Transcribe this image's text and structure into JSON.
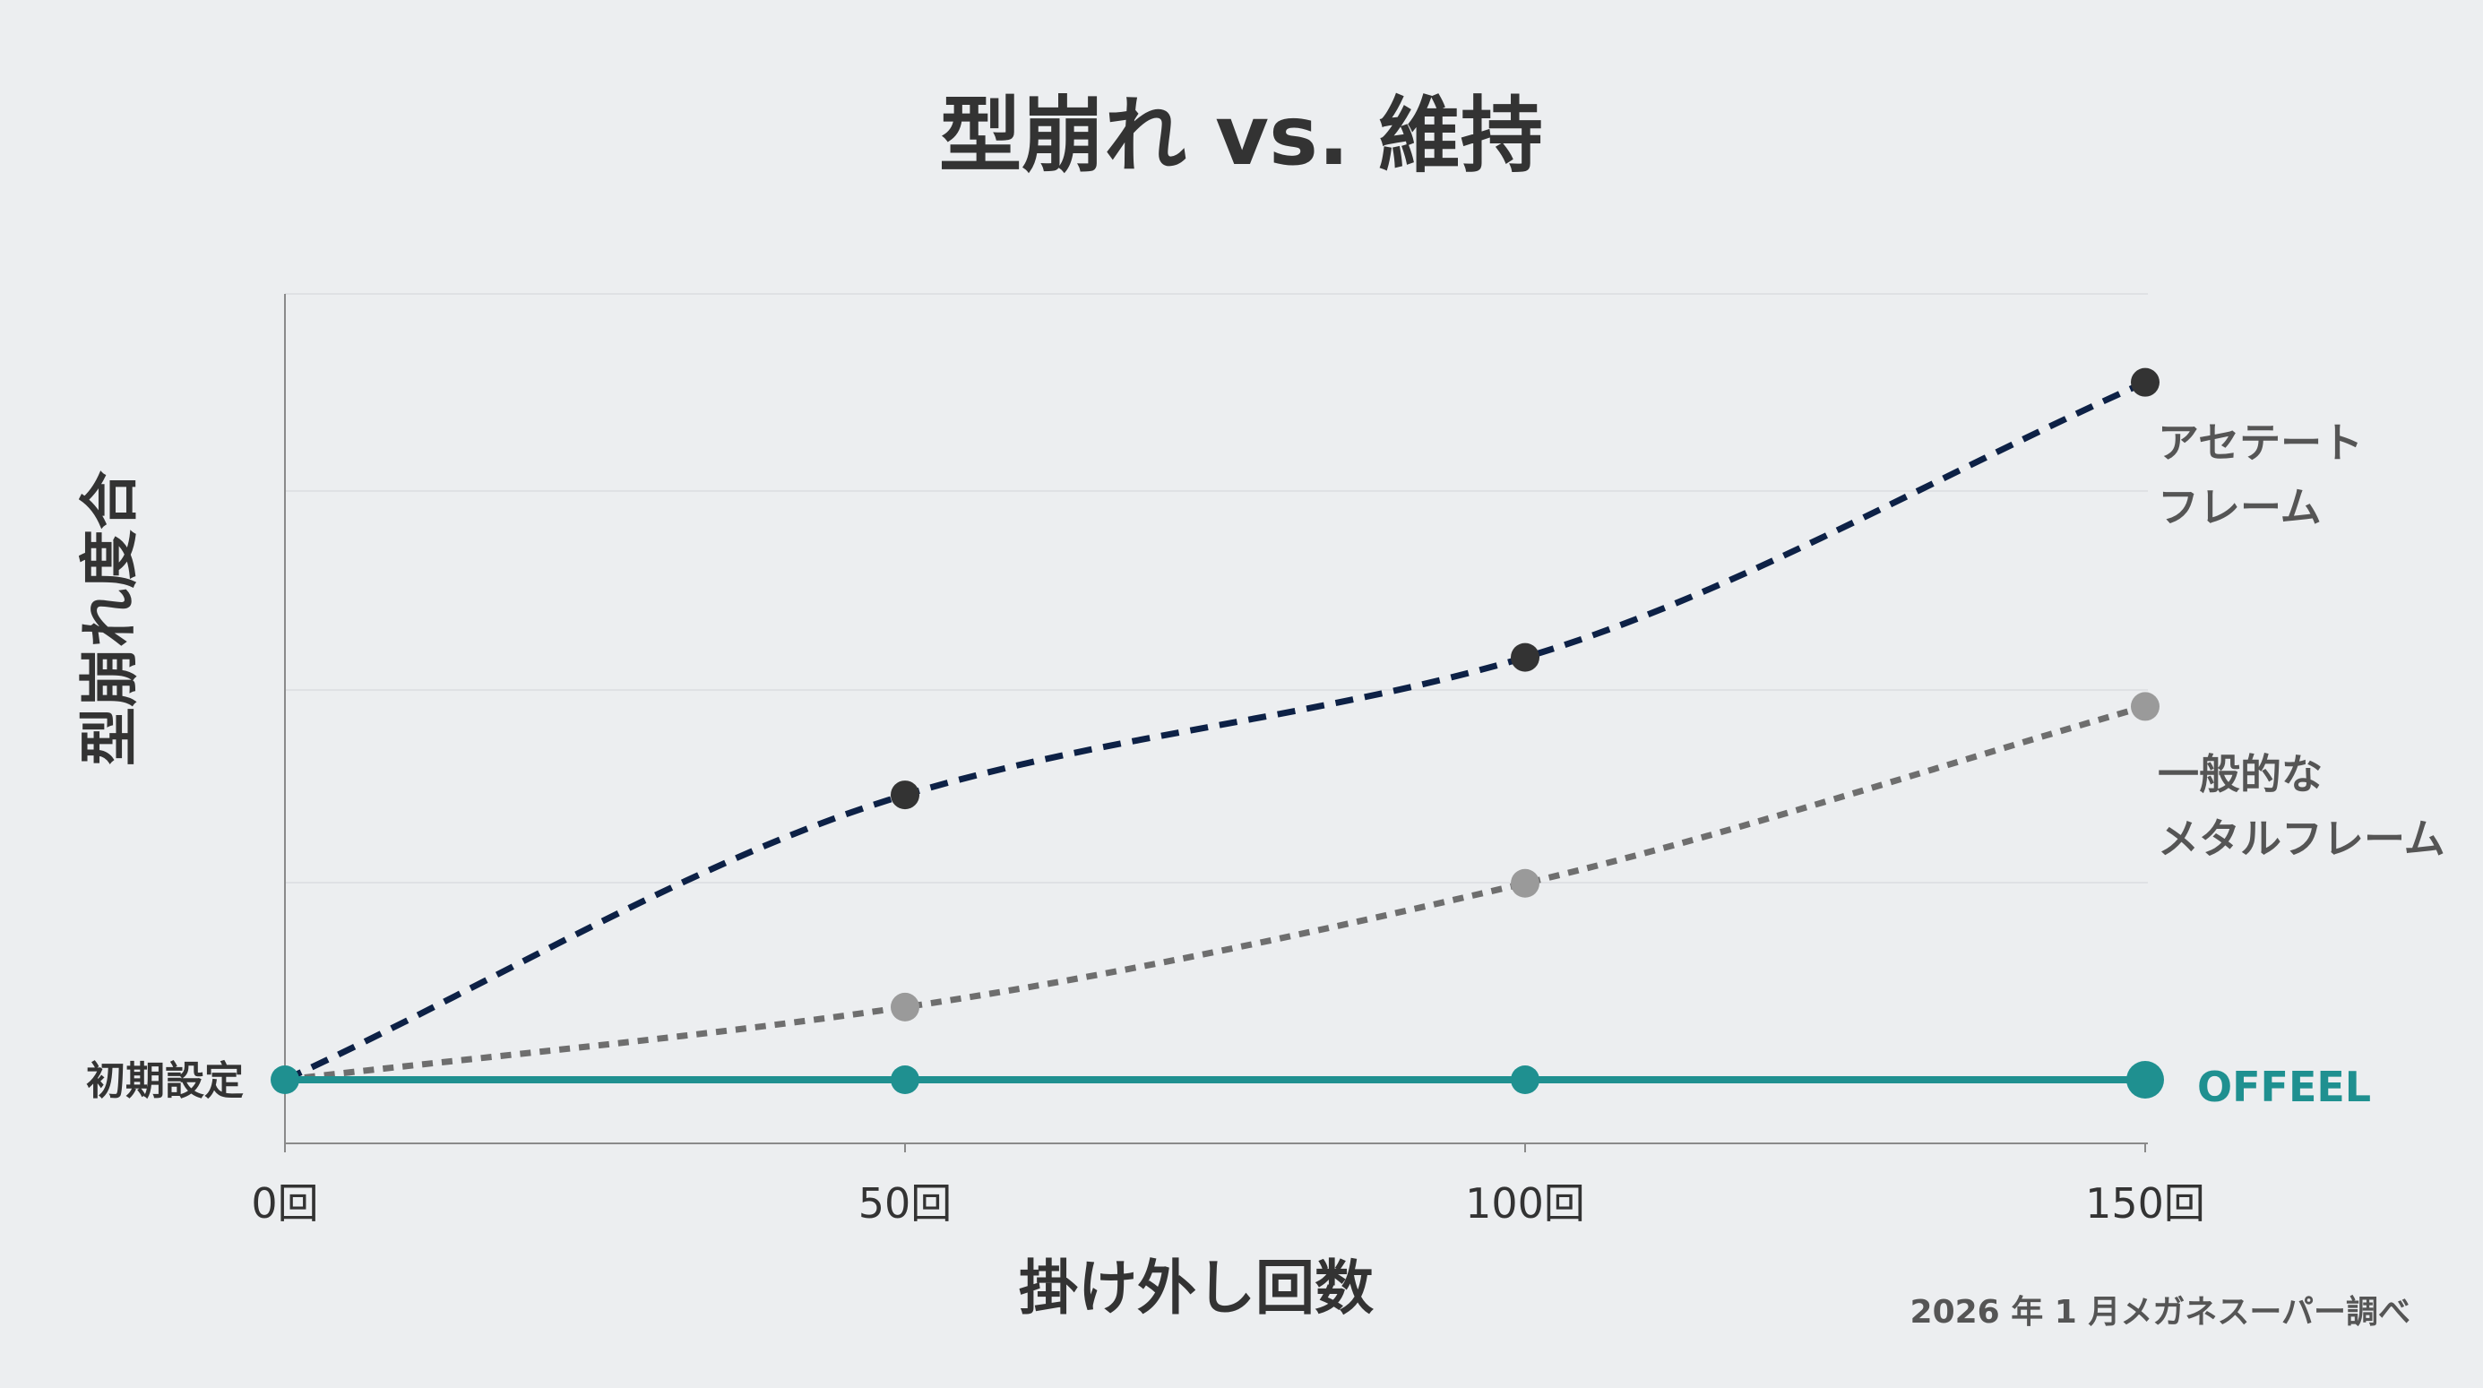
{
  "chart_data": {
    "type": "line",
    "title": "型崩れ vs. 維持",
    "xlabel": "掛け外し回数",
    "ylabel": "型崩れ度合",
    "x": [
      0,
      50,
      100,
      150
    ],
    "x_tick_labels": [
      "0回",
      "50回",
      "100回",
      "150回"
    ],
    "y_tick_labels": [
      {
        "value": 0,
        "label": "初期設定"
      }
    ],
    "xlim": [
      0,
      150
    ],
    "ylim": [
      -0.3,
      4
    ],
    "grid": true,
    "series": [
      {
        "name_lines": [
          "アセテート",
          "フレーム"
        ],
        "values": [
          0,
          1.45,
          2.15,
          3.55
        ],
        "color": "#0d2146",
        "marker_color": "#333333",
        "line_style": "dashed",
        "smooth": true
      },
      {
        "name_lines": [
          "一般的な",
          "メタルフレーム"
        ],
        "values": [
          0,
          0.37,
          1.0,
          1.9
        ],
        "color": "#6e6e6e",
        "marker_color": "#9a9a9a",
        "line_style": "dotted",
        "smooth": true
      },
      {
        "name_lines": [
          "OFFEEL"
        ],
        "values": [
          0,
          0,
          0,
          0
        ],
        "color": "#1f9090",
        "marker_color": "#1f9090",
        "line_style": "solid",
        "smooth": false
      }
    ],
    "source": "2026 年 1 月メガネスーパー調べ"
  }
}
